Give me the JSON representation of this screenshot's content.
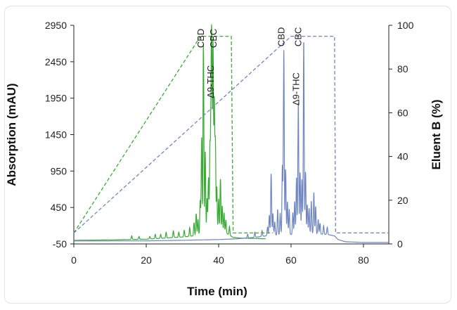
{
  "chart_data": {
    "type": "line",
    "xlabel": "Time (min)",
    "ylabel": "Absorption (mAU)",
    "y2label": "Eluent B (%)",
    "xlim": [
      0,
      87
    ],
    "ylim": [
      -50,
      2950
    ],
    "y2lim": [
      0,
      100
    ],
    "x_ticks": [
      0,
      20,
      40,
      60,
      80
    ],
    "y_ticks": [
      -50,
      450,
      950,
      1450,
      1950,
      2450,
      2950
    ],
    "y2_ticks": [
      0,
      20,
      40,
      60,
      80,
      100
    ],
    "colors": {
      "green": "#3aaa35",
      "blue": "#6f86c0",
      "axis": "#222222"
    },
    "series": [
      {
        "axis": "left",
        "color": "#3aaa35",
        "style": "solid",
        "baseline": 0,
        "baseline_points": [
          [
            0,
            0
          ],
          [
            5,
            2
          ],
          [
            10,
            5
          ],
          [
            15,
            10
          ],
          [
            20,
            15
          ],
          [
            25,
            30
          ],
          [
            30,
            45
          ],
          [
            33,
            60
          ],
          [
            35,
            70
          ],
          [
            38,
            80
          ],
          [
            40,
            90
          ],
          [
            42,
            100
          ],
          [
            44,
            40
          ],
          [
            46,
            30
          ],
          [
            50,
            25
          ],
          [
            53,
            20
          ]
        ],
        "peaks": [
          [
            16,
            50
          ],
          [
            18,
            40
          ],
          [
            21,
            35
          ],
          [
            22.5,
            60
          ],
          [
            24,
            55
          ],
          [
            25.5,
            80
          ],
          [
            27.5,
            95
          ],
          [
            29,
            70
          ],
          [
            30.5,
            90
          ],
          [
            32,
            120
          ],
          [
            33.2,
            180
          ],
          [
            33.8,
            300
          ],
          [
            34.3,
            220
          ],
          [
            34.9,
            480
          ],
          [
            35.3,
            1350
          ],
          [
            35.8,
            2620
          ],
          [
            36.3,
            1150
          ],
          [
            36.8,
            500
          ],
          [
            37.2,
            780
          ],
          [
            37.6,
            1200
          ],
          [
            37.9,
            1700
          ],
          [
            38.1,
            2280
          ],
          [
            38.45,
            2630
          ],
          [
            38.8,
            1800
          ],
          [
            39.1,
            1250
          ],
          [
            39.5,
            650
          ],
          [
            40,
            480
          ],
          [
            40.5,
            750
          ],
          [
            41,
            380
          ],
          [
            41.5,
            280
          ],
          [
            42,
            180
          ],
          [
            43,
            120
          ]
        ]
      },
      {
        "axis": "left",
        "color": "#6f86c0",
        "style": "solid",
        "baseline": -10,
        "baseline_points": [
          [
            0,
            -10
          ],
          [
            20,
            -8
          ],
          [
            30,
            0
          ],
          [
            40,
            10
          ],
          [
            45,
            20
          ],
          [
            50,
            40
          ],
          [
            53,
            60
          ],
          [
            55,
            70
          ],
          [
            60,
            80
          ],
          [
            65,
            90
          ],
          [
            70,
            80
          ],
          [
            72,
            60
          ],
          [
            73,
            10
          ],
          [
            75,
            -20
          ],
          [
            80,
            -30
          ],
          [
            87,
            -30
          ]
        ],
        "peaks": [
          [
            48,
            50
          ],
          [
            50,
            70
          ],
          [
            52,
            80
          ],
          [
            53.5,
            120
          ],
          [
            54,
            280
          ],
          [
            54.5,
            850
          ],
          [
            55,
            300
          ],
          [
            55.5,
            180
          ],
          [
            56.3,
            350
          ],
          [
            57,
            300
          ],
          [
            57.6,
            950
          ],
          [
            58,
            2530
          ],
          [
            58.5,
            900
          ],
          [
            59,
            450
          ],
          [
            59.5,
            350
          ],
          [
            60.5,
            300
          ],
          [
            61,
            450
          ],
          [
            61.5,
            780
          ],
          [
            62,
            1800
          ],
          [
            62.5,
            850
          ],
          [
            63,
            750
          ],
          [
            63.5,
            2660
          ],
          [
            64,
            850
          ],
          [
            64.5,
            400
          ],
          [
            65,
            350
          ],
          [
            65.6,
            450
          ],
          [
            66.3,
            570
          ],
          [
            66.8,
            380
          ],
          [
            67.5,
            200
          ],
          [
            68,
            150
          ],
          [
            69,
            120
          ],
          [
            70,
            100
          ]
        ]
      },
      {
        "axis": "right",
        "color": "#3aaa35",
        "style": "dashed",
        "points": [
          [
            0,
            5
          ],
          [
            35,
            95
          ],
          [
            43.5,
            95
          ],
          [
            44,
            5
          ],
          [
            55,
            5
          ]
        ]
      },
      {
        "axis": "right",
        "color": "#6f86c0",
        "style": "dashed",
        "points": [
          [
            0,
            5
          ],
          [
            60,
            95
          ],
          [
            72,
            95
          ],
          [
            72.3,
            5
          ],
          [
            87,
            5
          ]
        ]
      }
    ],
    "annotations": [
      {
        "text": "CBD",
        "x": 35.9,
        "y": 2640,
        "rotate": -90
      },
      {
        "text": "CBC",
        "x": 39.4,
        "y": 2640,
        "rotate": -90
      },
      {
        "text": "Δ9-THC",
        "x": 38.6,
        "y": 1950,
        "rotate": -90
      },
      {
        "text": "CBD",
        "x": 58.2,
        "y": 2660,
        "rotate": -90
      },
      {
        "text": "CBC",
        "x": 62.8,
        "y": 2660,
        "rotate": -90
      },
      {
        "text": "Δ9-THC",
        "x": 62.2,
        "y": 1850,
        "rotate": -90
      }
    ]
  }
}
